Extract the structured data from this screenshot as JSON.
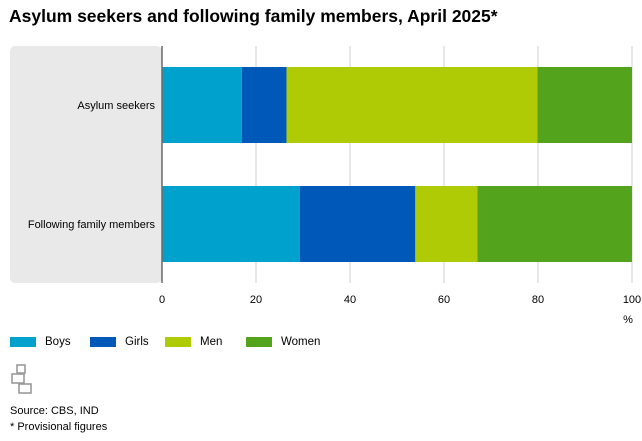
{
  "title": "Asylum seekers and following family members, April 2025*",
  "chart_data": {
    "type": "bar",
    "orientation": "horizontal",
    "stacked": true,
    "categories": [
      "Asylum seekers",
      "Following family members"
    ],
    "series": [
      {
        "name": "Boys",
        "color": "#00a1cd",
        "values": [
          17,
          29.3
        ]
      },
      {
        "name": "Girls",
        "color": "#0058b8",
        "values": [
          9.5,
          24.6
        ]
      },
      {
        "name": "Men",
        "color": "#afcb05",
        "values": [
          53.4,
          13.2
        ]
      },
      {
        "name": "Women",
        "color": "#53a31d",
        "values": [
          20.1,
          32.9
        ]
      }
    ],
    "xlim": [
      0,
      100
    ],
    "xticks": [
      0,
      20,
      40,
      60,
      80,
      100
    ],
    "xunit": "%",
    "grid": true,
    "legend_position": "bottom-left"
  },
  "footer": {
    "source": "Source: CBS, IND",
    "note": "* Provisional figures"
  }
}
